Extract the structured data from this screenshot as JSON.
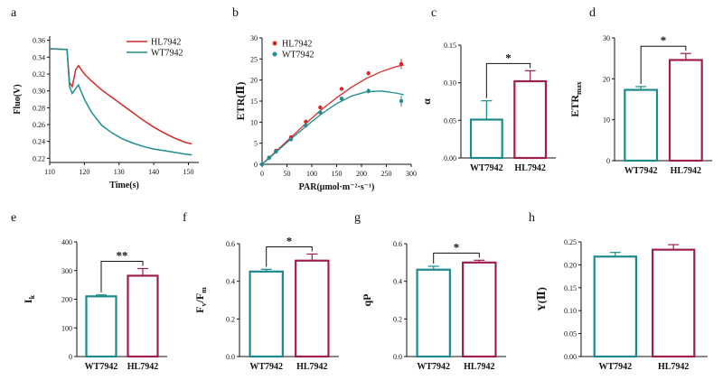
{
  "colors": {
    "teal": "#1b8a8a",
    "crimson": "#9e1e50",
    "red": "#d42a2a",
    "tealLine": "#1e8e8e"
  },
  "chart_data": [
    {
      "id": "a",
      "panel": "a",
      "type": "line",
      "xlabel": "Time(s)",
      "ylabel": "Fluo(V)",
      "xlim": [
        110,
        153
      ],
      "ylim": [
        0.215,
        0.365
      ],
      "xticks": [
        "110",
        "120",
        "130",
        "140",
        "150"
      ],
      "yticks": [
        "0.22",
        "0.24",
        "0.26",
        "0.28",
        "0.30",
        "0.32",
        "0.34",
        "0.36"
      ],
      "legend": "top-right",
      "series": [
        {
          "name": "HL7942",
          "color": "red",
          "x": [
            110,
            115,
            115.7,
            116.5,
            117.5,
            118.3,
            120,
            122,
            125,
            128,
            131,
            134,
            137,
            140,
            143,
            146,
            149,
            151
          ],
          "y": [
            0.35,
            0.349,
            0.31,
            0.305,
            0.325,
            0.33,
            0.32,
            0.312,
            0.301,
            0.292,
            0.283,
            0.274,
            0.265,
            0.257,
            0.25,
            0.244,
            0.239,
            0.237
          ]
        },
        {
          "name": "WT7942",
          "color": "tealLine",
          "x": [
            110,
            115,
            115.7,
            116.5,
            117.5,
            118.3,
            120,
            122,
            125,
            128,
            131,
            134,
            137,
            140,
            143,
            146,
            149,
            151
          ],
          "y": [
            0.35,
            0.349,
            0.305,
            0.297,
            0.303,
            0.307,
            0.29,
            0.275,
            0.259,
            0.25,
            0.243,
            0.238,
            0.234,
            0.231,
            0.229,
            0.227,
            0.225,
            0.224
          ]
        }
      ]
    },
    {
      "id": "b",
      "panel": "b",
      "type": "scatter",
      "xlabel": "PAR(μmol·m⁻²·s⁻¹)",
      "ylabel": "ETR(Ⅱ)",
      "xlim": [
        0,
        300
      ],
      "ylim": [
        0,
        30
      ],
      "xticks": [
        "0",
        "50",
        "100",
        "150",
        "200",
        "250",
        "300"
      ],
      "yticks": [
        "0",
        "5",
        "10",
        "15",
        "20",
        "25",
        "30"
      ],
      "legend": "top-left",
      "series": [
        {
          "name": "HL7942",
          "color": "red",
          "x": [
            0,
            14,
            28,
            58,
            88,
            117,
            160,
            214,
            280
          ],
          "y": [
            0,
            1.6,
            3.2,
            6.4,
            10.1,
            13.5,
            17.9,
            21.6,
            23.8
          ],
          "err": [
            0,
            0.2,
            0.2,
            0.3,
            0.3,
            0.4,
            0.4,
            0.5,
            1.2
          ]
        },
        {
          "name": "WT7942",
          "color": "tealLine",
          "x": [
            0,
            14,
            28,
            58,
            88,
            117,
            160,
            214,
            280
          ],
          "y": [
            0,
            1.5,
            3.0,
            5.9,
            9.2,
            12.3,
            15.6,
            17.4,
            15.0
          ],
          "err": [
            0,
            0.2,
            0.2,
            0.3,
            0.3,
            0.4,
            0.4,
            0.6,
            1.3
          ]
        }
      ],
      "fit": [
        {
          "color": "red",
          "x": [
            0,
            30,
            60,
            90,
            120,
            150,
            180,
            210,
            240,
            270,
            285
          ],
          "y": [
            0,
            3.3,
            6.6,
            9.9,
            13.0,
            15.8,
            18.3,
            20.4,
            22.0,
            23.2,
            23.6
          ]
        },
        {
          "color": "tealLine",
          "x": [
            0,
            30,
            60,
            90,
            120,
            150,
            180,
            210,
            240,
            270,
            285
          ],
          "y": [
            0,
            3.1,
            6.2,
            9.2,
            12.0,
            14.4,
            16.2,
            17.2,
            17.4,
            16.9,
            16.5
          ]
        }
      ]
    },
    {
      "id": "c",
      "panel": "c",
      "type": "bar",
      "ylabel": "α",
      "ylim": [
        0,
        0.15
      ],
      "yticks": [
        "0.00",
        "0.05",
        "0.10",
        "0.15"
      ],
      "categories": [
        "WT7942",
        "HL7942"
      ],
      "values": [
        0.051,
        0.102
      ],
      "errors": [
        0.025,
        0.014
      ],
      "significance": "*"
    },
    {
      "id": "d",
      "panel": "d",
      "type": "bar",
      "ylabel": "ETR",
      "ylabel_sub": "max",
      "ylim": [
        0,
        30
      ],
      "yticks": [
        "0",
        "10",
        "20",
        "30"
      ],
      "categories": [
        "WT7942",
        "HL7942"
      ],
      "values": [
        17.3,
        24.6
      ],
      "errors": [
        0.8,
        1.6
      ],
      "significance": "*"
    },
    {
      "id": "e",
      "panel": "e",
      "type": "bar",
      "ylabel": "I",
      "ylabel_sub": "k",
      "ylim": [
        0,
        400
      ],
      "yticks": [
        "0",
        "100",
        "200",
        "300",
        "400"
      ],
      "categories": [
        "WT7942",
        "HL7942"
      ],
      "values": [
        210,
        282
      ],
      "errors": [
        5,
        25
      ],
      "significance": "**"
    },
    {
      "id": "f",
      "panel": "f",
      "type": "bar",
      "ylabel": "F",
      "ylabel_sub": "v",
      "ylabel_mid": "/F",
      "ylabel_sub2": "m",
      "ylim": [
        0,
        0.6
      ],
      "yticks": [
        "0.0",
        "0.2",
        "0.4",
        "0.6"
      ],
      "categories": [
        "WT7942",
        "HL7942"
      ],
      "values": [
        0.452,
        0.51
      ],
      "errors": [
        0.012,
        0.035
      ],
      "significance": "*"
    },
    {
      "id": "g",
      "panel": "g",
      "type": "bar",
      "ylabel": "qP",
      "ylim": [
        0,
        0.6
      ],
      "yticks": [
        "0.0",
        "0.2",
        "0.4",
        "0.6"
      ],
      "categories": [
        "WT7942",
        "HL7942"
      ],
      "values": [
        0.462,
        0.5
      ],
      "errors": [
        0.018,
        0.012
      ],
      "significance": "*"
    },
    {
      "id": "h",
      "panel": "h",
      "type": "bar",
      "ylabel": "Y(Ⅱ)",
      "ylim": [
        0,
        0.25
      ],
      "yticks": [
        "0.00",
        "0.05",
        "0.10",
        "0.15",
        "0.20",
        "0.25"
      ],
      "categories": [
        "WT7942",
        "HL7942"
      ],
      "values": [
        0.218,
        0.233
      ],
      "errors": [
        0.009,
        0.011
      ],
      "significance": ""
    }
  ]
}
